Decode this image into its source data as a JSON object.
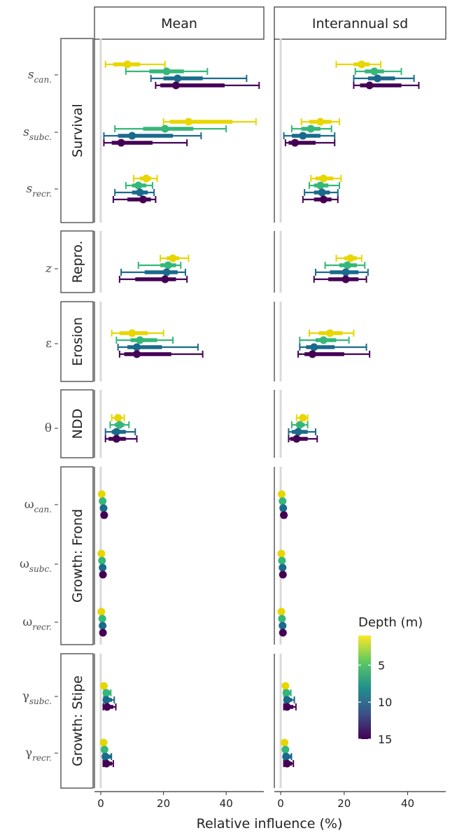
{
  "chart_data": {
    "type": "errorbar-dot",
    "facet_columns": [
      "Mean",
      "Interannual sd"
    ],
    "row_groups": [
      {
        "label": "Survival",
        "params": [
          "s_can",
          "s_subc",
          "s_recr"
        ]
      },
      {
        "label": "Repro.",
        "params": [
          "z"
        ]
      },
      {
        "label": "Erosion",
        "params": [
          "epsilon"
        ]
      },
      {
        "label": "NDD",
        "params": [
          "theta"
        ]
      },
      {
        "label": "Growth: Frond",
        "params": [
          "omega_can",
          "omega_subc",
          "omega_recr"
        ]
      },
      {
        "label": "Growth: Stipe",
        "params": [
          "gamma_subc",
          "gamma_recr"
        ]
      }
    ],
    "param_labels": {
      "s_can": {
        "base": "s",
        "sub": "can."
      },
      "s_subc": {
        "base": "s",
        "sub": "subc."
      },
      "s_recr": {
        "base": "s",
        "sub": "recr."
      },
      "z": {
        "base": "z",
        "sub": ""
      },
      "epsilon": {
        "base": "ε",
        "sub": ""
      },
      "theta": {
        "base": "θ",
        "sub": ""
      },
      "omega_can": {
        "base": "ω",
        "sub": "can."
      },
      "omega_subc": {
        "base": "ω",
        "sub": "subc."
      },
      "omega_recr": {
        "base": "ω",
        "sub": "recr."
      },
      "gamma_subc": {
        "base": "γ",
        "sub": "subc."
      },
      "gamma_recr": {
        "base": "γ",
        "sub": "recr."
      }
    },
    "xlabel": "Relative influence (%)",
    "xlim": [
      -2,
      52
    ],
    "xticks": [
      0,
      20,
      40
    ],
    "depths": [
      2,
      5,
      10,
      15
    ],
    "depth_colors": [
      "#e8d600",
      "#35b779",
      "#1a6a8c",
      "#440154"
    ],
    "legend": {
      "title": "Depth (m)",
      "ticks": [
        5,
        10,
        15
      ],
      "range": [
        1,
        15
      ],
      "placement": "right"
    },
    "values": {
      "Mean": {
        "s_can": [
          [
            8.5,
            1.5,
            20.5,
            4,
            12.5
          ],
          [
            21,
            8,
            34,
            15.5,
            26.5
          ],
          [
            24.5,
            16,
            46.5,
            20,
            32.5
          ],
          [
            24,
            17.5,
            50.5,
            19,
            39.5
          ]
        ],
        "s_subc": [
          [
            28,
            20,
            49.5,
            22,
            42
          ],
          [
            20.5,
            4.5,
            40,
            13.5,
            29.5
          ],
          [
            10,
            1,
            32,
            5.5,
            23
          ],
          [
            6.5,
            1,
            27.5,
            3.5,
            16.5
          ]
        ],
        "s_recr": [
          [
            14.5,
            10.5,
            18,
            12.5,
            16
          ],
          [
            12,
            8,
            16.5,
            10,
            14.5
          ],
          [
            12.5,
            4.5,
            17,
            10,
            15
          ],
          [
            13.5,
            4,
            17.5,
            8.5,
            16
          ]
        ],
        "z": [
          [
            23,
            19,
            28,
            21,
            25
          ],
          [
            21.5,
            12,
            25.5,
            19,
            24
          ],
          [
            21,
            6.5,
            27,
            14,
            24.5
          ],
          [
            20.5,
            6,
            27.5,
            11,
            24
          ]
        ],
        "epsilon": [
          [
            10,
            3.5,
            20,
            6,
            15
          ],
          [
            12.5,
            5,
            23,
            9.5,
            18
          ],
          [
            11.5,
            5.5,
            31,
            8.5,
            19.5
          ],
          [
            11.5,
            6,
            32.5,
            7.5,
            22.5
          ]
        ],
        "theta": [
          [
            5.5,
            3.5,
            7.5,
            4.5,
            6.5
          ],
          [
            6,
            3,
            9,
            4.5,
            7.5
          ],
          [
            5,
            1.5,
            11,
            3.5,
            8
          ],
          [
            5,
            1.5,
            11.5,
            2.5,
            8
          ]
        ],
        "omega_can": [
          [
            0.3,
            0.3,
            0.3,
            0.3,
            0.3
          ],
          [
            0.6,
            0.6,
            0.6,
            0.6,
            0.6
          ],
          [
            0.9,
            0.9,
            0.9,
            0.9,
            0.9
          ],
          [
            1.1,
            0.5,
            1.6,
            0.5,
            1.6
          ]
        ],
        "omega_subc": [
          [
            0.2,
            0.2,
            0.2,
            0.2,
            0.2
          ],
          [
            0.4,
            0.4,
            0.4,
            0.4,
            0.4
          ],
          [
            0.6,
            0.6,
            0.6,
            0.6,
            0.6
          ],
          [
            0.7,
            0.7,
            0.7,
            0.7,
            0.7
          ]
        ],
        "omega_recr": [
          [
            0.2,
            0.2,
            0.2,
            0.2,
            0.2
          ],
          [
            0.5,
            0.5,
            0.5,
            0.5,
            0.5
          ],
          [
            0.6,
            0.6,
            0.6,
            0.6,
            0.6
          ],
          [
            0.7,
            0.7,
            0.7,
            0.7,
            0.7
          ]
        ],
        "gamma_subc": [
          [
            1,
            1,
            1,
            1,
            1
          ],
          [
            1.8,
            1,
            3.2,
            1,
            3.2
          ],
          [
            1.8,
            1,
            4.3,
            1,
            3.6
          ],
          [
            2,
            0.8,
            4.8,
            0.8,
            4
          ]
        ],
        "gamma_recr": [
          [
            0.9,
            0.9,
            0.9,
            0.9,
            0.9
          ],
          [
            1.2,
            1.2,
            1.2,
            1.2,
            1.2
          ],
          [
            1.5,
            0.8,
            3.4,
            0.8,
            3.4
          ],
          [
            1.8,
            0.8,
            4,
            0.8,
            3.6
          ]
        ]
      },
      "Interannual sd": {
        "s_can": [
          [
            25.5,
            17.5,
            31.5,
            23,
            28
          ],
          [
            29.5,
            23.5,
            38,
            26.5,
            32.5
          ],
          [
            30.5,
            23,
            42,
            27.5,
            36
          ],
          [
            28,
            23,
            43.5,
            25,
            38
          ]
        ],
        "s_subc": [
          [
            12.5,
            6.5,
            18.5,
            9,
            16
          ],
          [
            9.5,
            3.5,
            16,
            6.5,
            12.5
          ],
          [
            7,
            1,
            17,
            3.5,
            12.5
          ],
          [
            4.5,
            1.5,
            17,
            2.5,
            11
          ]
        ],
        "s_recr": [
          [
            13.5,
            9.5,
            19,
            11,
            16.5
          ],
          [
            12.5,
            9,
            18.5,
            10.5,
            15
          ],
          [
            13,
            7.5,
            18,
            10.5,
            15.5
          ],
          [
            13.5,
            7,
            18,
            10.5,
            16
          ]
        ],
        "z": [
          [
            22,
            17.5,
            25.5,
            20,
            24
          ],
          [
            21,
            14,
            26.5,
            18.5,
            24
          ],
          [
            20.5,
            11,
            27.5,
            15.5,
            24.5
          ],
          [
            20.5,
            10.5,
            27,
            15,
            24.5
          ]
        ],
        "epsilon": [
          [
            15.5,
            9,
            23,
            12,
            19.5
          ],
          [
            13.5,
            6,
            21.5,
            11,
            17.5
          ],
          [
            10.5,
            6,
            27,
            8,
            17
          ],
          [
            10,
            5.5,
            28,
            7.5,
            20
          ]
        ],
        "theta": [
          [
            7,
            5,
            8.5,
            6,
            8
          ],
          [
            6,
            3.5,
            8.5,
            5,
            7.5
          ],
          [
            5.5,
            2.5,
            11,
            3.5,
            8.5
          ],
          [
            5,
            2.5,
            11.5,
            3,
            8.5
          ]
        ],
        "omega_can": [
          [
            0.3,
            0.3,
            0.3,
            0.3,
            0.3
          ],
          [
            0.6,
            0.6,
            0.6,
            0.6,
            0.6
          ],
          [
            0.8,
            0.8,
            0.8,
            0.8,
            0.8
          ],
          [
            1,
            0.5,
            1.6,
            0.5,
            1.6
          ]
        ],
        "omega_subc": [
          [
            0.2,
            0.2,
            0.2,
            0.2,
            0.2
          ],
          [
            0.4,
            0.4,
            0.4,
            0.4,
            0.4
          ],
          [
            0.6,
            0.6,
            0.6,
            0.6,
            0.6
          ],
          [
            0.7,
            0.7,
            0.7,
            0.7,
            0.7
          ]
        ],
        "omega_recr": [
          [
            0.2,
            0.2,
            0.2,
            0.2,
            0.2
          ],
          [
            0.4,
            0.4,
            0.4,
            0.4,
            0.4
          ],
          [
            0.6,
            0.6,
            0.6,
            0.6,
            0.6
          ],
          [
            0.7,
            0.7,
            0.7,
            0.7,
            0.7
          ]
        ],
        "gamma_subc": [
          [
            1.5,
            1.5,
            1.5,
            1.5,
            1.5
          ],
          [
            1.8,
            1,
            3.2,
            1,
            3.2
          ],
          [
            2,
            1.2,
            4.3,
            1.2,
            3.6
          ],
          [
            2,
            1,
            4.8,
            1,
            4
          ]
        ],
        "gamma_recr": [
          [
            1.2,
            1.2,
            1.2,
            1.2,
            1.2
          ],
          [
            1.5,
            1.5,
            1.5,
            1.5,
            1.5
          ],
          [
            1.7,
            1,
            3.4,
            1,
            3.4
          ],
          [
            2,
            1,
            4,
            1,
            3.6
          ]
        ]
      }
    },
    "value_order": [
      "median",
      "lower_outer",
      "upper_outer",
      "lower_inner",
      "upper_inner"
    ]
  }
}
